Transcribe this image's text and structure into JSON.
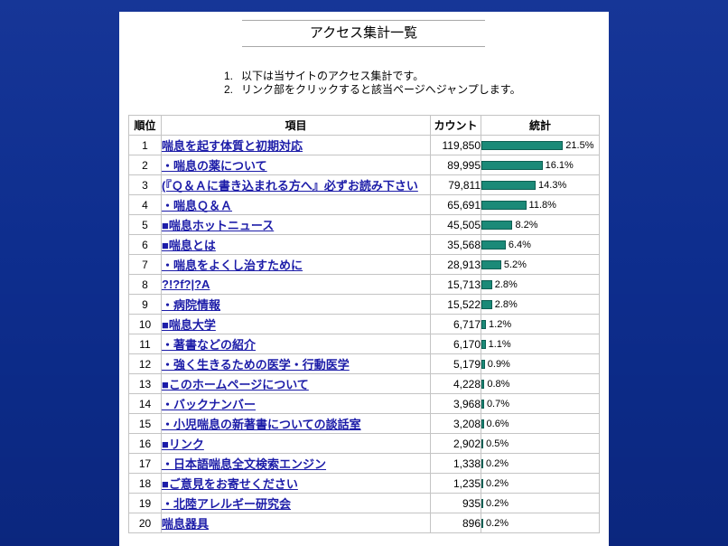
{
  "title": "アクセス集計一覧",
  "notes": [
    {
      "marker": "1.",
      "text": "以下は当サイトのアクセス集計です。"
    },
    {
      "marker": "2.",
      "text": "リンク部をクリックすると該当ページへジャンプします。"
    }
  ],
  "table": {
    "headers": {
      "rank": "順位",
      "item": "項目",
      "count": "カウント",
      "stats": "統計"
    },
    "rows": [
      {
        "rank": "1",
        "item": "喘息を起す体質と初期対応",
        "count": "119,850",
        "percent": "21.5%"
      },
      {
        "rank": "2",
        "item": "・喘息の薬について",
        "count": "89,995",
        "percent": "16.1%"
      },
      {
        "rank": "3",
        "item": "(『Ｑ＆Ａに書き込まれる方へ』必ずお読み下さい",
        "count": "79,811",
        "percent": "14.3%"
      },
      {
        "rank": "4",
        "item": "・喘息Ｑ＆Ａ",
        "count": "65,691",
        "percent": "11.8%"
      },
      {
        "rank": "5",
        "item": "■喘息ホットニュース",
        "count": "45,505",
        "percent": "8.2%"
      },
      {
        "rank": "6",
        "item": "■喘息とは",
        "count": "35,568",
        "percent": "6.4%"
      },
      {
        "rank": "7",
        "item": "・喘息をよくし治すために",
        "count": "28,913",
        "percent": "5.2%"
      },
      {
        "rank": "8",
        "item": "?!?f?|?A",
        "count": "15,713",
        "percent": "2.8%"
      },
      {
        "rank": "9",
        "item": "・病院情報",
        "count": "15,522",
        "percent": "2.8%"
      },
      {
        "rank": "10",
        "item": "■喘息大学",
        "count": "6,717",
        "percent": "1.2%"
      },
      {
        "rank": "11",
        "item": "・著書などの紹介",
        "count": "6,170",
        "percent": "1.1%"
      },
      {
        "rank": "12",
        "item": "・強く生きるための医学・行動医学",
        "count": "5,179",
        "percent": "0.9%"
      },
      {
        "rank": "13",
        "item": "■このホームページについて",
        "count": "4,228",
        "percent": "0.8%"
      },
      {
        "rank": "14",
        "item": "・バックナンバー",
        "count": "3,968",
        "percent": "0.7%"
      },
      {
        "rank": "15",
        "item": "・小児喘息の新著書についての談話室",
        "count": "3,208",
        "percent": "0.6%"
      },
      {
        "rank": "16",
        "item": "■リンク",
        "count": "2,902",
        "percent": "0.5%"
      },
      {
        "rank": "17",
        "item": "・日本語喘息全文検索エンジン",
        "count": "1,338",
        "percent": "0.2%"
      },
      {
        "rank": "18",
        "item": "■ご意見をお寄せください",
        "count": "1,235",
        "percent": "0.2%"
      },
      {
        "rank": "19",
        "item": "・北陸アレルギー研究会",
        "count": "935",
        "percent": "0.2%"
      },
      {
        "rank": "20",
        "item": "喘息器具",
        "count": "896",
        "percent": "0.2%"
      }
    ]
  },
  "colors": {
    "background": "#0d2d8d",
    "panel": "#ffffff",
    "link": "#1c1ca8",
    "bar": "#1b8a78",
    "bar_border": "#0e5f53",
    "grid": "#c4c4c4"
  }
}
